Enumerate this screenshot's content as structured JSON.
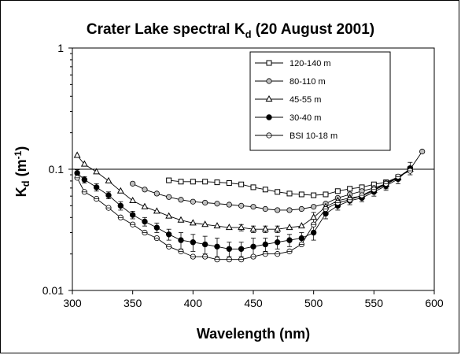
{
  "chart_data": {
    "type": "line",
    "title": {
      "main": "Crater Lake spectral K",
      "sub": "d",
      "tail": " (20 August 2001)"
    },
    "xlabel": "Wavelength (nm)",
    "ylabel": {
      "main": "K",
      "sub": "d",
      "mid": " (m",
      "sup": "-1",
      "tail": ")"
    },
    "xlim": [
      300,
      600
    ],
    "ylim": [
      0.01,
      1
    ],
    "yscale": "log",
    "xticks": [
      "300",
      "350",
      "400",
      "450",
      "500",
      "550",
      "600"
    ],
    "yticks": [
      {
        "v": 0.01,
        "label": "0.01"
      },
      {
        "v": 0.1,
        "label": "0.1"
      },
      {
        "v": 1,
        "label": "1"
      }
    ],
    "reference_line": 0.1,
    "legend_position": "upper-middle",
    "series": [
      {
        "name": "120-140 m",
        "marker": "square",
        "points": [
          [
            380,
            0.081
          ],
          [
            390,
            0.079
          ],
          [
            400,
            0.079
          ],
          [
            410,
            0.079
          ],
          [
            420,
            0.078
          ],
          [
            430,
            0.077
          ],
          [
            440,
            0.075
          ],
          [
            450,
            0.071
          ],
          [
            460,
            0.068
          ],
          [
            470,
            0.065
          ],
          [
            480,
            0.063
          ],
          [
            490,
            0.062
          ],
          [
            500,
            0.061
          ],
          [
            510,
            0.062
          ],
          [
            520,
            0.066
          ],
          [
            530,
            0.069
          ],
          [
            540,
            0.071
          ],
          [
            550,
            0.075
          ],
          [
            560,
            0.078
          ],
          [
            570,
            0.086
          ],
          [
            580,
            0.1
          ]
        ],
        "err": [
          0,
          0,
          0,
          0,
          0,
          0,
          0,
          0,
          0,
          0,
          0,
          0,
          0,
          0,
          0,
          0,
          0,
          0,
          0,
          0,
          0
        ]
      },
      {
        "name": "80-110 m",
        "marker": "circle-gray",
        "points": [
          [
            350,
            0.076
          ],
          [
            360,
            0.068
          ],
          [
            370,
            0.063
          ],
          [
            380,
            0.059
          ],
          [
            390,
            0.056
          ],
          [
            400,
            0.054
          ],
          [
            410,
            0.053
          ],
          [
            420,
            0.052
          ],
          [
            430,
            0.051
          ],
          [
            440,
            0.05
          ],
          [
            450,
            0.049
          ],
          [
            460,
            0.047
          ],
          [
            470,
            0.046
          ],
          [
            480,
            0.046
          ],
          [
            490,
            0.047
          ],
          [
            500,
            0.049
          ],
          [
            510,
            0.052
          ],
          [
            520,
            0.058
          ],
          [
            530,
            0.062
          ],
          [
            540,
            0.066
          ],
          [
            550,
            0.07
          ],
          [
            560,
            0.076
          ],
          [
            570,
            0.086
          ],
          [
            580,
            0.1
          ],
          [
            590,
            0.14
          ]
        ],
        "err": [
          0,
          0,
          0,
          0,
          0,
          0,
          0,
          0,
          0,
          0,
          0,
          0,
          0,
          0,
          0,
          0,
          0,
          0,
          0,
          0,
          0,
          0,
          0,
          0,
          0
        ]
      },
      {
        "name": "45-55 m",
        "marker": "triangle",
        "points": [
          [
            304,
            0.13
          ],
          [
            310,
            0.11
          ],
          [
            320,
            0.095
          ],
          [
            330,
            0.08
          ],
          [
            340,
            0.066
          ],
          [
            350,
            0.055
          ],
          [
            360,
            0.049
          ],
          [
            370,
            0.045
          ],
          [
            380,
            0.041
          ],
          [
            390,
            0.038
          ],
          [
            400,
            0.036
          ],
          [
            410,
            0.035
          ],
          [
            420,
            0.034
          ],
          [
            430,
            0.033
          ],
          [
            440,
            0.033
          ],
          [
            450,
            0.032
          ],
          [
            460,
            0.032
          ],
          [
            470,
            0.032
          ],
          [
            480,
            0.033
          ],
          [
            490,
            0.034
          ],
          [
            500,
            0.04
          ],
          [
            510,
            0.049
          ],
          [
            520,
            0.055
          ],
          [
            530,
            0.058
          ],
          [
            540,
            0.06
          ],
          [
            550,
            0.067
          ],
          [
            560,
            0.075
          ],
          [
            570,
            0.085
          ],
          [
            580,
            0.1
          ]
        ],
        "err": [
          0,
          0,
          0,
          0,
          0,
          0,
          0,
          0,
          0,
          0,
          0,
          0,
          0,
          0,
          0.002,
          0.002,
          0.002,
          0.002,
          0,
          0,
          0.004,
          0,
          0,
          0,
          0,
          0,
          0.006,
          0,
          0
        ]
      },
      {
        "name": "30-40 m",
        "marker": "circle-filled",
        "points": [
          [
            304,
            0.093
          ],
          [
            310,
            0.082
          ],
          [
            320,
            0.071
          ],
          [
            330,
            0.061
          ],
          [
            340,
            0.05
          ],
          [
            350,
            0.042
          ],
          [
            360,
            0.037
          ],
          [
            370,
            0.033
          ],
          [
            380,
            0.029
          ],
          [
            390,
            0.026
          ],
          [
            400,
            0.025
          ],
          [
            410,
            0.024
          ],
          [
            420,
            0.023
          ],
          [
            430,
            0.022
          ],
          [
            440,
            0.022
          ],
          [
            450,
            0.023
          ],
          [
            460,
            0.024
          ],
          [
            470,
            0.025
          ],
          [
            480,
            0.026
          ],
          [
            490,
            0.027
          ],
          [
            500,
            0.03
          ],
          [
            510,
            0.043
          ],
          [
            520,
            0.05
          ],
          [
            530,
            0.055
          ],
          [
            540,
            0.058
          ],
          [
            550,
            0.065
          ],
          [
            560,
            0.073
          ],
          [
            570,
            0.083
          ],
          [
            580,
            0.102
          ]
        ],
        "err": [
          0.006,
          0.005,
          0.005,
          0.004,
          0.004,
          0.003,
          0.003,
          0.003,
          0.003,
          0.004,
          0.004,
          0.004,
          0.004,
          0.003,
          0.003,
          0.004,
          0.003,
          0.003,
          0.003,
          0.003,
          0.004,
          0.004,
          0.004,
          0.004,
          0.004,
          0.005,
          0.006,
          0.007,
          0.012
        ]
      },
      {
        "name": "BSI 10-18 m",
        "marker": "circle-half",
        "points": [
          [
            304,
            0.085
          ],
          [
            310,
            0.065
          ],
          [
            320,
            0.057
          ],
          [
            330,
            0.048
          ],
          [
            340,
            0.04
          ],
          [
            350,
            0.035
          ],
          [
            360,
            0.03
          ],
          [
            370,
            0.027
          ],
          [
            380,
            0.023
          ],
          [
            390,
            0.021
          ],
          [
            400,
            0.019
          ],
          [
            410,
            0.019
          ],
          [
            420,
            0.018
          ],
          [
            430,
            0.018
          ],
          [
            440,
            0.018
          ],
          [
            450,
            0.019
          ],
          [
            460,
            0.02
          ],
          [
            470,
            0.02
          ],
          [
            480,
            0.021
          ],
          [
            490,
            0.024
          ],
          [
            500,
            0.035
          ],
          [
            510,
            0.047
          ],
          [
            520,
            0.053
          ],
          [
            530,
            0.056
          ],
          [
            540,
            0.061
          ],
          [
            550,
            0.068
          ],
          [
            560,
            0.076
          ],
          [
            570,
            0.087
          ],
          [
            580,
            0.097
          ]
        ],
        "err": [
          0,
          0,
          0,
          0,
          0,
          0,
          0,
          0,
          0,
          0,
          0,
          0,
          0,
          0,
          0,
          0,
          0,
          0,
          0,
          0,
          0,
          0,
          0,
          0,
          0,
          0,
          0,
          0,
          0
        ]
      }
    ]
  }
}
